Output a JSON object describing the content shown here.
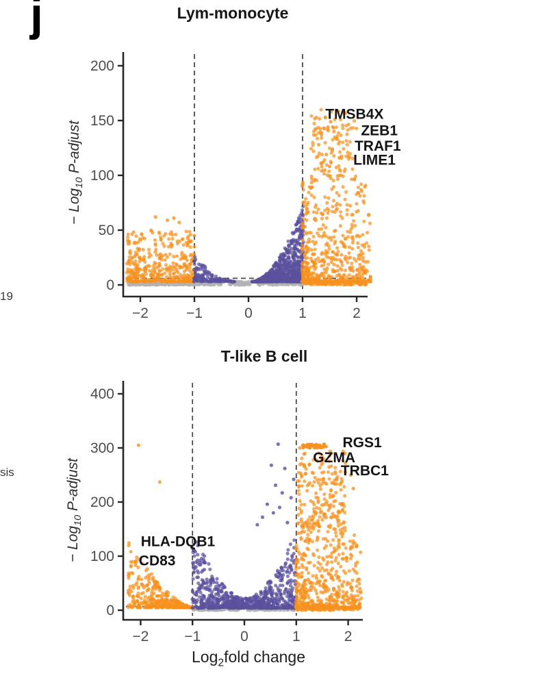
{
  "panel": {
    "label": "j"
  },
  "fragments": [
    {
      "text": "19"
    },
    {
      "text": "sis"
    }
  ],
  "colors": {
    "orange": "#F6921E",
    "purple": "#5A519E",
    "gray": "#B3B3B3",
    "axis": "#262626",
    "tick_text": "#4D4D4D",
    "dashed": "#4A4A4A",
    "label_text": "#141414"
  },
  "chart_data": [
    {
      "type": "scatter",
      "subtype": "volcano",
      "title": "Lym-monocyte",
      "xlabel": "",
      "ylabel": "− Log10 P-adjust",
      "ylabel_parts": [
        "− Log",
        "10",
        " P-adjust"
      ],
      "xlim": [
        -2.35,
        2.33
      ],
      "ylim": [
        0,
        218
      ],
      "x_ticks": [
        -2,
        -1,
        0,
        1,
        2
      ],
      "y_ticks": [
        0,
        50,
        100,
        150,
        200
      ],
      "grid": false,
      "legend": false,
      "threshold_lines": {
        "vertical_x": [
          -1,
          1
        ],
        "horizontal_y": 6,
        "style": "dashed"
      },
      "gene_labels": [
        {
          "gene": "TMSB4X",
          "x": 1.96,
          "y": 156
        },
        {
          "gene": "ZEB1",
          "x": 2.42,
          "y": 141
        },
        {
          "gene": "TRAF1",
          "x": 2.39,
          "y": 127
        },
        {
          "gene": "LIME1",
          "x": 2.33,
          "y": 114
        }
      ],
      "clusters": [
        {
          "name": "not-significant-band",
          "color": "gray",
          "profile": "band",
          "n": 520,
          "x": [
            -2.22,
            1.02
          ],
          "y": [
            0,
            3
          ],
          "gaps": [
            [
              -0.5,
              -0.36
            ],
            [
              0.04,
              0.16
            ]
          ],
          "opacity": 0.85
        },
        {
          "name": "down-regulated-orange",
          "color": "orange",
          "profile": "decay",
          "n": 420,
          "x": [
            -2.25,
            -0.99
          ],
          "y": [
            3,
            50
          ],
          "xpow": 1.15,
          "ypow": 2.4
        },
        {
          "name": "mid-left-purple",
          "color": "purple",
          "profile": "wedge",
          "peak": "left",
          "n": 150,
          "x": [
            -1.01,
            -0.26
          ],
          "y": [
            3,
            27
          ],
          "wpow": 1.6,
          "ypow": 1.7,
          "xpow": 1.4
        },
        {
          "name": "mid-right-purple",
          "color": "purple",
          "profile": "wedge",
          "peak": "right",
          "n": 900,
          "x": [
            0.06,
            1.02
          ],
          "y": [
            3,
            73
          ],
          "wpow": 1.8,
          "ypow": 2.0,
          "xpow": 0.75
        },
        {
          "name": "up-regulated-orange",
          "color": "orange",
          "profile": "decay",
          "n": 640,
          "x": [
            0.99,
            2.26
          ],
          "y": [
            3,
            160
          ],
          "xpow": 1.35,
          "ypow": 2.8,
          "tall_y": 95,
          "tall_x": [
            1.15,
            2.0
          ]
        },
        {
          "name": "up-low-orange-band",
          "color": "orange",
          "profile": "band",
          "n": 110,
          "x": [
            1.02,
            2.2
          ],
          "y": [
            0,
            3
          ]
        }
      ],
      "extra_points": [
        {
          "color": "orange",
          "pts": [
            [
              1.42,
              153
            ],
            [
              1.52,
              149
            ],
            [
              1.47,
              144
            ],
            [
              1.58,
              140
            ],
            [
              1.35,
              137
            ],
            [
              1.64,
              133
            ],
            [
              1.3,
              128
            ],
            [
              1.55,
              124
            ],
            [
              1.44,
              119
            ],
            [
              1.68,
              116
            ],
            [
              1.38,
              112
            ],
            [
              1.5,
              108
            ],
            [
              -1.72,
              62
            ],
            [
              -1.5,
              59
            ],
            [
              -1.38,
              61
            ],
            [
              -1.28,
              57
            ]
          ]
        }
      ]
    },
    {
      "type": "scatter",
      "subtype": "volcano",
      "title": "T-like B cell",
      "xlabel": "Log2fold change",
      "xlabel_parts": [
        "Log",
        "2",
        "fold change"
      ],
      "ylabel": "− Log10 P-adjust",
      "ylabel_parts": [
        "− Log",
        "10",
        " P-adjust"
      ],
      "xlim": [
        -2.35,
        2.33
      ],
      "ylim": [
        0,
        430
      ],
      "x_ticks": [
        -2,
        -1,
        0,
        1,
        2
      ],
      "y_ticks": [
        0,
        100,
        200,
        300,
        400
      ],
      "grid": false,
      "legend": false,
      "threshold_lines": {
        "vertical_x": [
          -1,
          1
        ],
        "horizontal_y": 7,
        "style": "dashed"
      },
      "gene_labels": [
        {
          "gene": "RGS1",
          "x": 2.27,
          "y": 310
        },
        {
          "gene": "GZMA",
          "x": 1.73,
          "y": 282
        },
        {
          "gene": "TRBC1",
          "x": 2.32,
          "y": 258
        },
        {
          "gene": "HLA-DQB1",
          "x": -1.28,
          "y": 127
        },
        {
          "gene": "CD83",
          "x": -1.68,
          "y": 92
        }
      ],
      "clusters": [
        {
          "name": "not-significant-band",
          "color": "gray",
          "profile": "band",
          "n": 260,
          "x": [
            -0.98,
            0.97
          ],
          "y": [
            0,
            4
          ],
          "gaps": [
            [
              -0.1,
              0.06
            ]
          ],
          "opacity": 0.85
        },
        {
          "name": "down-regulated-orange",
          "color": "orange",
          "profile": "wedge",
          "peak": "left",
          "n": 400,
          "x": [
            -2.24,
            -0.99
          ],
          "y": [
            5,
            128
          ],
          "wpow": 1.5,
          "ypow": 1.9
        },
        {
          "name": "mid-purple-v",
          "color": "purple",
          "profile": "vshape",
          "n": 800,
          "x": [
            -1.01,
            1.01
          ],
          "y": [
            4,
            150
          ],
          "x_edge": 1.01,
          "ymax_center": 22,
          "ymax_edge": 150,
          "tpow": 1.8,
          "ypow": 2.1
        },
        {
          "name": "up-regulated-orange",
          "color": "orange",
          "profile": "decay",
          "n": 720,
          "x": [
            0.99,
            2.26
          ],
          "y": [
            5,
            295
          ],
          "xpow": 1.25,
          "ypow": 2.6,
          "tall_y": 140,
          "tall_x": [
            1.02,
            1.95
          ]
        },
        {
          "name": "rgs1-dense-streak",
          "color": "orange",
          "profile": "streak",
          "n": 50,
          "x": [
            1.12,
            1.58
          ],
          "y": [
            300,
            307
          ],
          "r": 2.4,
          "opacity": 0.95
        },
        {
          "name": "up-low-orange-band",
          "color": "orange",
          "profile": "band",
          "n": 70,
          "x": [
            1.0,
            2.2
          ],
          "y": [
            0,
            4
          ]
        }
      ],
      "extra_points": [
        {
          "color": "orange",
          "pts": [
            [
              -2.04,
              305
            ],
            [
              -1.63,
              237
            ],
            [
              1.95,
              272
            ],
            [
              2.05,
              250
            ],
            [
              1.88,
              238
            ],
            [
              2.1,
              225
            ],
            [
              1.07,
              300
            ]
          ]
        },
        {
          "color": "purple",
          "pts": [
            [
              0.65,
              307
            ],
            [
              0.78,
              262
            ],
            [
              0.52,
              268
            ],
            [
              0.6,
              231
            ],
            [
              0.73,
              217
            ],
            [
              0.44,
              196
            ],
            [
              0.56,
              180
            ],
            [
              0.83,
              162
            ],
            [
              0.35,
              172
            ],
            [
              0.9,
              208
            ],
            [
              0.95,
              242
            ],
            [
              0.25,
              158
            ],
            [
              0.68,
              190
            ]
          ]
        }
      ]
    }
  ]
}
